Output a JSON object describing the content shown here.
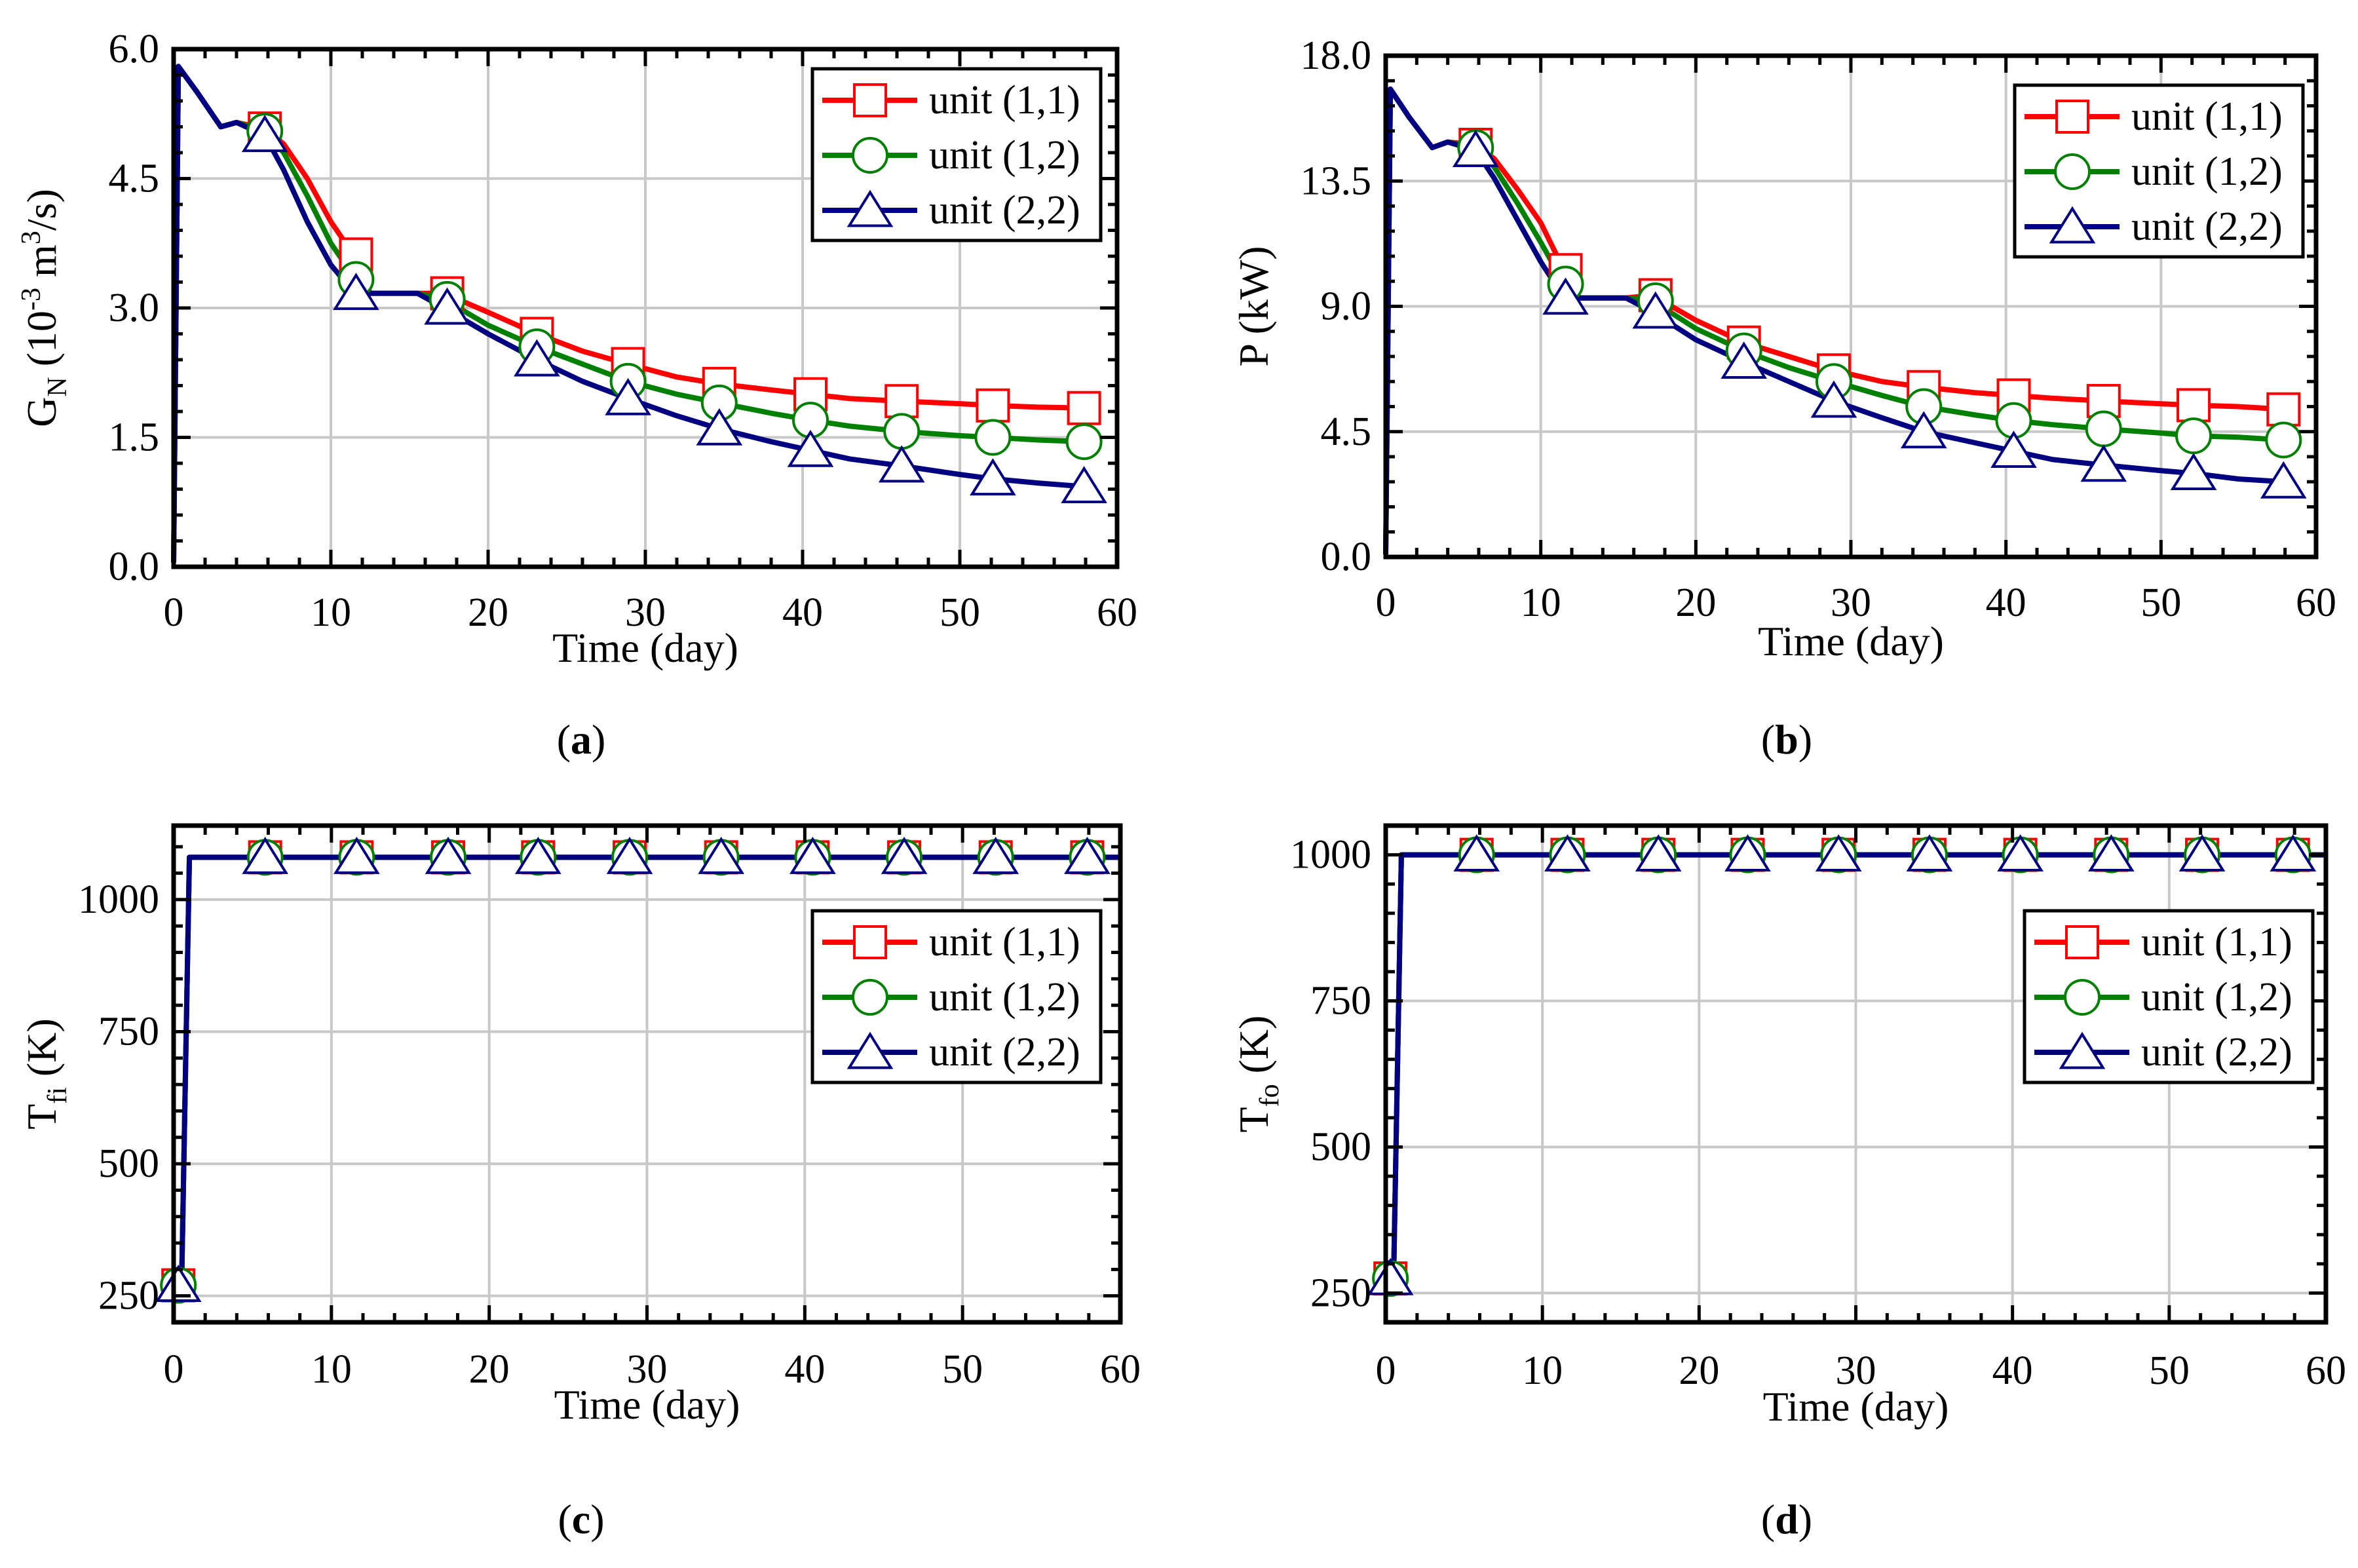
{
  "colors": {
    "unit_1_1": "#ff0000",
    "unit_1_2": "#008000",
    "unit_2_2": "#000080",
    "grid": "#c8c8c8",
    "axis": "#000000"
  },
  "chart_data": [
    {
      "id": "a",
      "type": "line",
      "panel_label": "a",
      "xlabel": "Time (day)",
      "ylabel": {
        "main": "G",
        "sub": "N",
        "rest": " (10",
        "sup": "-3",
        "rest2": " m",
        "sup2": "3",
        "rest3": "/s)"
      },
      "xlim": [
        0,
        60
      ],
      "ylim": [
        0,
        6
      ],
      "xticks": [
        0,
        10,
        20,
        30,
        40,
        50,
        60
      ],
      "xtick_labels": [
        "0",
        "10",
        "20",
        "30",
        "40",
        "50",
        "60"
      ],
      "yticks": [
        0,
        1.5,
        3,
        4.5,
        6
      ],
      "ytick_labels": [
        "0.0",
        "1.5",
        "3.0",
        "4.5",
        "6.0"
      ],
      "grid": true,
      "legend": {
        "placement": "top-right",
        "entries": [
          "unit (1,1)",
          "unit (1,2)",
          "unit (2,2)"
        ]
      },
      "series": [
        {
          "name": "unit (1,1)",
          "marker": "square",
          "x": [
            0,
            0.3,
            1.5,
            3,
            4,
            5.8,
            7,
            8.5,
            10,
            11.5,
            12.5,
            14,
            15.5,
            17.2,
            20,
            23.1,
            26,
            28.9,
            32,
            34.7,
            38,
            40.5,
            43,
            46.3,
            50,
            52.1,
            55,
            57.9
          ],
          "y": [
            0.05,
            5.8,
            5.5,
            5.1,
            5.15,
            5.08,
            4.9,
            4.5,
            4.0,
            3.6,
            3.17,
            3.17,
            3.17,
            3.17,
            2.95,
            2.7,
            2.5,
            2.35,
            2.2,
            2.12,
            2.05,
            2.0,
            1.95,
            1.92,
            1.89,
            1.87,
            1.85,
            1.84
          ],
          "marker_x": [
            5.8,
            11.6,
            17.4,
            23.1,
            28.9,
            34.7,
            40.5,
            46.3,
            52.1,
            57.9
          ],
          "marker_y": [
            5.08,
            3.62,
            3.17,
            2.7,
            2.35,
            2.12,
            2.0,
            1.92,
            1.87,
            1.84
          ]
        },
        {
          "name": "unit (1,2)",
          "marker": "circle",
          "x": [
            0,
            0.3,
            1.5,
            3,
            4,
            5.8,
            7,
            8.5,
            10,
            11.5,
            12.5,
            14,
            15.5,
            17.2,
            20,
            23.1,
            26,
            28.9,
            32,
            34.7,
            38,
            40.5,
            43,
            46.3,
            50,
            52.1,
            55,
            57.9
          ],
          "y": [
            0.05,
            5.8,
            5.5,
            5.1,
            5.15,
            5.05,
            4.8,
            4.3,
            3.75,
            3.35,
            3.17,
            3.17,
            3.17,
            3.1,
            2.8,
            2.55,
            2.35,
            2.15,
            2.0,
            1.9,
            1.78,
            1.7,
            1.63,
            1.57,
            1.52,
            1.5,
            1.47,
            1.45
          ],
          "marker_x": [
            5.8,
            11.6,
            17.4,
            23.1,
            28.9,
            34.7,
            40.5,
            46.3,
            52.1,
            57.9
          ],
          "marker_y": [
            5.05,
            3.33,
            3.1,
            2.55,
            2.15,
            1.9,
            1.7,
            1.57,
            1.5,
            1.45
          ]
        },
        {
          "name": "unit (2,2)",
          "marker": "triangle",
          "x": [
            0,
            0.3,
            1.5,
            3,
            4,
            5.8,
            7,
            8.5,
            10,
            11.5,
            12.5,
            14,
            15.5,
            17.2,
            20,
            23.1,
            26,
            28.9,
            32,
            34.7,
            38,
            40.5,
            43,
            46.3,
            50,
            52.1,
            55,
            57.9
          ],
          "y": [
            0.05,
            5.8,
            5.5,
            5.1,
            5.15,
            5.0,
            4.6,
            4.0,
            3.5,
            3.17,
            3.17,
            3.17,
            3.17,
            3.0,
            2.7,
            2.4,
            2.15,
            1.95,
            1.75,
            1.6,
            1.45,
            1.35,
            1.25,
            1.17,
            1.07,
            1.02,
            0.97,
            0.93
          ],
          "marker_x": [
            5.8,
            11.6,
            17.4,
            23.1,
            28.9,
            34.7,
            40.5,
            46.3,
            52.1,
            57.9
          ],
          "marker_y": [
            5.0,
            3.17,
            3.0,
            2.4,
            1.95,
            1.6,
            1.35,
            1.17,
            1.02,
            0.93
          ]
        }
      ]
    },
    {
      "id": "b",
      "type": "line",
      "panel_label": "b",
      "xlabel": "Time (day)",
      "ylabel": {
        "main": "P (kW)"
      },
      "xlim": [
        0,
        60
      ],
      "ylim": [
        0,
        18
      ],
      "xticks": [
        0,
        10,
        20,
        30,
        40,
        50,
        60
      ],
      "xtick_labels": [
        "0",
        "10",
        "20",
        "30",
        "40",
        "50",
        "60"
      ],
      "yticks": [
        0,
        4.5,
        9,
        13.5,
        18
      ],
      "ytick_labels": [
        "0.0",
        "4.5",
        "9.0",
        "13.5",
        "18.0"
      ],
      "grid": true,
      "legend": {
        "placement": "top-right",
        "entries": [
          "unit (1,1)",
          "unit (1,2)",
          "unit (2,2)"
        ]
      },
      "series": [
        {
          "name": "unit (1,1)",
          "marker": "square",
          "x": [
            0,
            0.3,
            1.5,
            3,
            4,
            5.8,
            7,
            8.5,
            10,
            11.5,
            12.5,
            14,
            15.5,
            17.2,
            20,
            23.1,
            26,
            28.9,
            32,
            34.7,
            38,
            40.5,
            43,
            46.3,
            50,
            52.1,
            55,
            57.9
          ],
          "y": [
            0.1,
            16.8,
            15.8,
            14.7,
            14.9,
            14.8,
            14.3,
            13.2,
            12.0,
            10.3,
            9.3,
            9.3,
            9.3,
            9.4,
            8.5,
            7.7,
            7.2,
            6.7,
            6.3,
            6.1,
            5.9,
            5.8,
            5.7,
            5.6,
            5.5,
            5.45,
            5.4,
            5.3
          ],
          "marker_x": [
            5.8,
            11.6,
            17.4,
            23.1,
            28.9,
            34.7,
            40.5,
            46.3,
            52.1,
            57.9
          ],
          "marker_y": [
            14.8,
            10.3,
            9.4,
            7.7,
            6.7,
            6.1,
            5.8,
            5.6,
            5.45,
            5.3
          ]
        },
        {
          "name": "unit (1,2)",
          "marker": "circle",
          "x": [
            0,
            0.3,
            1.5,
            3,
            4,
            5.8,
            7,
            8.5,
            10,
            11.5,
            12.5,
            14,
            15.5,
            17.2,
            20,
            23.1,
            26,
            28.9,
            32,
            34.7,
            38,
            40.5,
            43,
            46.3,
            50,
            52.1,
            55,
            57.9
          ],
          "y": [
            0.1,
            16.8,
            15.8,
            14.7,
            14.9,
            14.7,
            14.0,
            12.7,
            11.3,
            9.8,
            9.3,
            9.3,
            9.3,
            9.2,
            8.2,
            7.4,
            6.8,
            6.3,
            5.8,
            5.4,
            5.1,
            4.9,
            4.75,
            4.6,
            4.45,
            4.35,
            4.3,
            4.2
          ],
          "marker_x": [
            5.8,
            11.6,
            17.4,
            23.1,
            28.9,
            34.7,
            40.5,
            46.3,
            52.1,
            57.9
          ],
          "marker_y": [
            14.7,
            9.8,
            9.2,
            7.4,
            6.3,
            5.4,
            4.9,
            4.6,
            4.35,
            4.2
          ]
        },
        {
          "name": "unit (2,2)",
          "marker": "triangle",
          "x": [
            0,
            0.3,
            1.5,
            3,
            4,
            5.8,
            7,
            8.5,
            10,
            11.5,
            12.5,
            14,
            15.5,
            17.2,
            20,
            23.1,
            26,
            28.9,
            32,
            34.7,
            38,
            40.5,
            43,
            46.3,
            50,
            52.1,
            55,
            57.9
          ],
          "y": [
            0.1,
            16.8,
            15.8,
            14.7,
            14.9,
            14.6,
            13.6,
            12.1,
            10.6,
            9.3,
            9.3,
            9.3,
            9.3,
            8.8,
            7.8,
            7.0,
            6.3,
            5.6,
            5.0,
            4.5,
            4.1,
            3.8,
            3.5,
            3.3,
            3.1,
            3.0,
            2.8,
            2.7
          ],
          "marker_x": [
            5.8,
            11.6,
            17.4,
            23.1,
            28.9,
            34.7,
            40.5,
            46.3,
            52.1,
            57.9
          ],
          "marker_y": [
            14.6,
            9.3,
            8.8,
            7.0,
            5.6,
            4.5,
            3.8,
            3.3,
            3.0,
            2.7
          ]
        }
      ]
    },
    {
      "id": "c",
      "type": "line",
      "panel_label": "c",
      "xlabel": "Time (day)",
      "ylabel": {
        "main": "T",
        "sub": "fi",
        "rest": " (K)"
      },
      "xlim": [
        0,
        60
      ],
      "ylim": [
        200,
        1140
      ],
      "xticks": [
        0,
        10,
        20,
        30,
        40,
        50,
        60
      ],
      "xtick_labels": [
        "0",
        "10",
        "20",
        "30",
        "40",
        "50",
        "60"
      ],
      "yticks": [
        250,
        500,
        750,
        1000
      ],
      "ytick_labels": [
        "250",
        "500",
        "750",
        "1000"
      ],
      "grid": true,
      "legend": {
        "placement": "middle-right",
        "entries": [
          "unit (1,1)",
          "unit (1,2)",
          "unit (2,2)"
        ]
      },
      "series": [
        {
          "name": "unit (1,1)",
          "marker": "square",
          "x": [
            0,
            0.5,
            1,
            60
          ],
          "y": [
            300,
            260,
            1080,
            1080
          ],
          "marker_x": [
            0.3,
            5.8,
            11.6,
            17.4,
            23.1,
            28.9,
            34.7,
            40.5,
            46.3,
            52.1,
            57.9
          ],
          "marker_y": [
            270,
            1080,
            1080,
            1080,
            1080,
            1080,
            1080,
            1080,
            1080,
            1080,
            1080
          ]
        },
        {
          "name": "unit (1,2)",
          "marker": "circle",
          "x": [
            0,
            0.5,
            1,
            60
          ],
          "y": [
            300,
            260,
            1080,
            1080
          ],
          "marker_x": [
            0.3,
            5.8,
            11.6,
            17.4,
            23.1,
            28.9,
            34.7,
            40.5,
            46.3,
            52.1,
            57.9
          ],
          "marker_y": [
            270,
            1080,
            1080,
            1080,
            1080,
            1080,
            1080,
            1080,
            1080,
            1080,
            1080
          ]
        },
        {
          "name": "unit (2,2)",
          "marker": "triangle",
          "x": [
            0,
            0.5,
            1,
            60
          ],
          "y": [
            300,
            260,
            1080,
            1080
          ],
          "marker_x": [
            0.3,
            5.8,
            11.6,
            17.4,
            23.1,
            28.9,
            34.7,
            40.5,
            46.3,
            52.1,
            57.9
          ],
          "marker_y": [
            270,
            1080,
            1080,
            1080,
            1080,
            1080,
            1080,
            1080,
            1080,
            1080,
            1080
          ]
        }
      ]
    },
    {
      "id": "d",
      "type": "line",
      "panel_label": "d",
      "xlabel": "Time (day)",
      "ylabel": {
        "main": "T",
        "sub": "fo",
        "rest": " (K)"
      },
      "xlim": [
        0,
        60
      ],
      "ylim": [
        200,
        1050
      ],
      "xticks": [
        0,
        10,
        20,
        30,
        40,
        50,
        60
      ],
      "xtick_labels": [
        "0",
        "10",
        "20",
        "30",
        "40",
        "50",
        "60"
      ],
      "yticks": [
        250,
        500,
        750,
        1000
      ],
      "ytick_labels": [
        "250",
        "500",
        "750",
        "1000"
      ],
      "grid": true,
      "legend": {
        "placement": "middle-right",
        "entries": [
          "unit (1,1)",
          "unit (1,2)",
          "unit (2,2)"
        ]
      },
      "series": [
        {
          "name": "unit (1,1)",
          "marker": "square",
          "x": [
            0,
            0.5,
            1,
            60
          ],
          "y": [
            290,
            270,
            1000,
            1000
          ],
          "marker_x": [
            0.3,
            5.8,
            11.6,
            17.4,
            23.1,
            28.9,
            34.7,
            40.5,
            46.3,
            52.1,
            57.9
          ],
          "marker_y": [
            275,
            1000,
            1000,
            1000,
            1000,
            1000,
            1000,
            1000,
            1000,
            1000,
            1000
          ]
        },
        {
          "name": "unit (1,2)",
          "marker": "circle",
          "x": [
            0,
            0.5,
            1,
            60
          ],
          "y": [
            290,
            270,
            1000,
            1000
          ],
          "marker_x": [
            0.3,
            5.8,
            11.6,
            17.4,
            23.1,
            28.9,
            34.7,
            40.5,
            46.3,
            52.1,
            57.9
          ],
          "marker_y": [
            275,
            1000,
            1000,
            1000,
            1000,
            1000,
            1000,
            1000,
            1000,
            1000,
            1000
          ]
        },
        {
          "name": "unit (2,2)",
          "marker": "triangle",
          "x": [
            0,
            0.5,
            1,
            60
          ],
          "y": [
            290,
            270,
            1000,
            1000
          ],
          "marker_x": [
            0.3,
            5.8,
            11.6,
            17.4,
            23.1,
            28.9,
            34.7,
            40.5,
            46.3,
            52.1,
            57.9
          ],
          "marker_y": [
            275,
            1000,
            1000,
            1000,
            1000,
            1000,
            1000,
            1000,
            1000,
            1000,
            1000
          ]
        }
      ]
    }
  ]
}
